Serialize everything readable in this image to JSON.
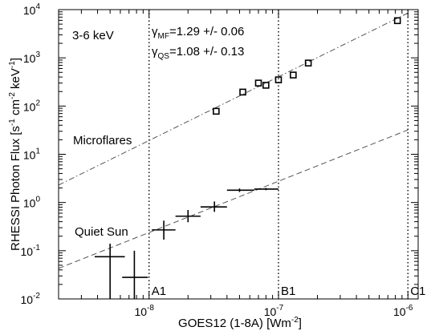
{
  "chart_data": {
    "type": "scatter",
    "title": "",
    "xlabel": "GOES12 (1-8A) [Wm",
    "xlabel_sup": "-2",
    "xlabel_end": "]",
    "ylabel": "RHESSI Photon Flux [s",
    "ylabel_sup1": "-1",
    "ylabel_mid1": " cm",
    "ylabel_sup2": "-2",
    "ylabel_mid2": " keV",
    "ylabel_sup3": "-1",
    "ylabel_end": "]",
    "x_scale": "log",
    "y_scale": "log",
    "xlim": [
      2e-09,
      1.2e-06
    ],
    "ylim": [
      0.01,
      10000
    ],
    "x_ticks": [
      {
        "value": 1e-08,
        "base": "10",
        "exp": "-8"
      },
      {
        "value": 1e-07,
        "base": "10",
        "exp": "-7"
      },
      {
        "value": 1e-06,
        "base": "10",
        "exp": "-6"
      }
    ],
    "y_ticks": [
      {
        "value": 0.01,
        "base": "10",
        "exp": "-2"
      },
      {
        "value": 0.1,
        "base": "10",
        "exp": "-1"
      },
      {
        "value": 1,
        "base": "10",
        "exp": "0"
      },
      {
        "value": 10,
        "base": "10",
        "exp": "1"
      },
      {
        "value": 100,
        "base": "10",
        "exp": "2"
      },
      {
        "value": 1000,
        "base": "10",
        "exp": "3"
      },
      {
        "value": 10000,
        "base": "10",
        "exp": "4"
      }
    ],
    "energy_band": "3-6 keV",
    "series": [
      {
        "name": "Microflares",
        "marker": "square",
        "points": [
          {
            "x": 3.3e-08,
            "y": 78
          },
          {
            "x": 5.3e-08,
            "y": 195
          },
          {
            "x": 7e-08,
            "y": 300
          },
          {
            "x": 8e-08,
            "y": 270
          },
          {
            "x": 1e-07,
            "y": 350
          },
          {
            "x": 1.3e-07,
            "y": 440
          },
          {
            "x": 1.7e-07,
            "y": 780
          },
          {
            "x": 8.3e-07,
            "y": 5900
          }
        ],
        "fit": {
          "label_symbol": "γ",
          "label_sub": "MF",
          "label_value": "=1.29 +/- 0.06",
          "style": "dash-dot",
          "x_range": [
            2e-09,
            1e-06
          ],
          "y_range": [
            2.3,
            8500
          ]
        }
      },
      {
        "name": "Quiet Sun",
        "marker": "cross-errorbar",
        "points": [
          {
            "x": 5e-09,
            "y": 0.075,
            "xerr": [
              3.8e-09,
              6.5e-09
            ],
            "yerr": [
              0.01,
              0.14
            ]
          },
          {
            "x": 7.7e-09,
            "y": 0.028,
            "xerr": [
              6.2e-09,
              9.8e-09
            ],
            "yerr": [
              0.01,
              0.1
            ]
          },
          {
            "x": 1.3e-08,
            "y": 0.27,
            "xerr": [
              1.05e-08,
              1.6e-08
            ],
            "yerr": [
              0.17,
              0.42
            ]
          },
          {
            "x": 2e-08,
            "y": 0.52,
            "xerr": [
              1.6e-08,
              2.5e-08
            ],
            "yerr": [
              0.39,
              0.7
            ]
          },
          {
            "x": 3.2e-08,
            "y": 0.81,
            "xerr": [
              2.5e-08,
              4e-08
            ],
            "yerr": [
              0.64,
              1.05
            ]
          },
          {
            "x": 5e-08,
            "y": 1.8,
            "xerr": [
              4e-08,
              6.5e-08
            ],
            "yerr": [
              1.65,
              1.95
            ]
          },
          {
            "x": 8e-08,
            "y": 1.9,
            "xerr": [
              6.5e-08,
              1e-07
            ],
            "yerr": [
              1.8,
              2.0
            ]
          }
        ],
        "fit": {
          "label_symbol": "γ",
          "label_sub": "QS",
          "label_value": "=1.08 +/- 0.13",
          "style": "dashed",
          "x_range": [
            2e-09,
            1e-06
          ],
          "y_range": [
            0.043,
            32
          ]
        }
      }
    ],
    "vertical_lines": [
      {
        "x": 1e-08,
        "label": "A1"
      },
      {
        "x": 1e-07,
        "label": "B1"
      },
      {
        "x": 1e-06,
        "label": "C1"
      }
    ],
    "grid": false,
    "legend": "none"
  }
}
